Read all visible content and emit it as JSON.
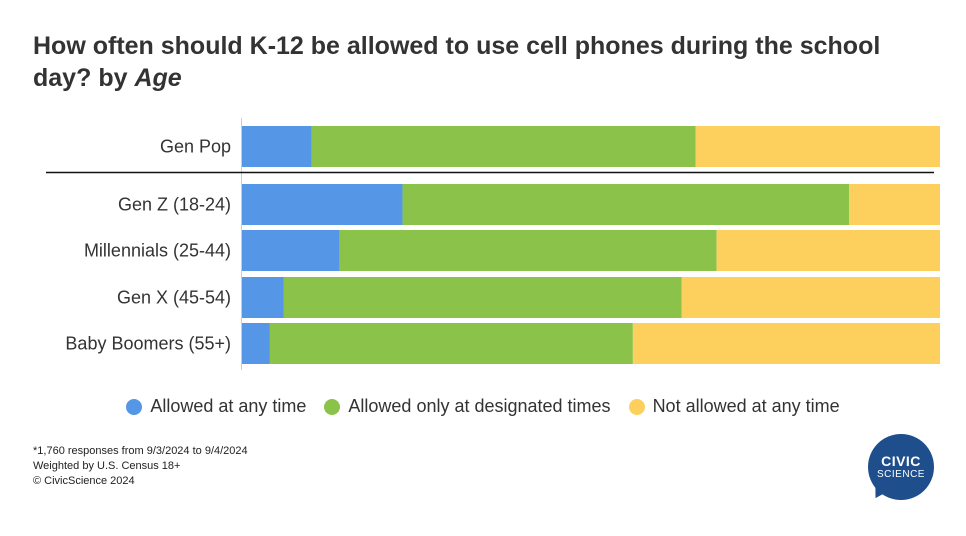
{
  "title": {
    "main": "How often should K-12 be allowed to use cell phones during the school day?",
    "by": "by",
    "group": "Age"
  },
  "chart_data": {
    "type": "bar",
    "orientation": "horizontal",
    "stacked": "100%",
    "categories": [
      "Gen Pop",
      "Gen Z (18-24)",
      "Millennials (25-44)",
      "Gen X (45-54)",
      "Baby Boomers (55+)"
    ],
    "series": [
      {
        "name": "Allowed at any time",
        "color": "#5596e6",
        "values": [
          10,
          23,
          14,
          6,
          4
        ]
      },
      {
        "name": "Allowed only at designated times",
        "color": "#8bc34a",
        "values": [
          55,
          64,
          54,
          57,
          52
        ]
      },
      {
        "name": "Not allowed at any time",
        "color": "#fdd05e",
        "values": [
          35,
          13,
          32,
          37,
          44
        ]
      }
    ],
    "xlim": [
      0,
      100
    ],
    "grid": false,
    "legend_position": "bottom",
    "separator_after_category": "Gen Pop"
  },
  "footnote": {
    "line1": "*1,760 responses from 9/3/2024 to 9/4/2024",
    "line2": "Weighted by U.S. Census 18+",
    "line3": "© CivicScience 2024"
  },
  "logo": {
    "line1": "CIVIC",
    "line2": "SCIENCE"
  }
}
